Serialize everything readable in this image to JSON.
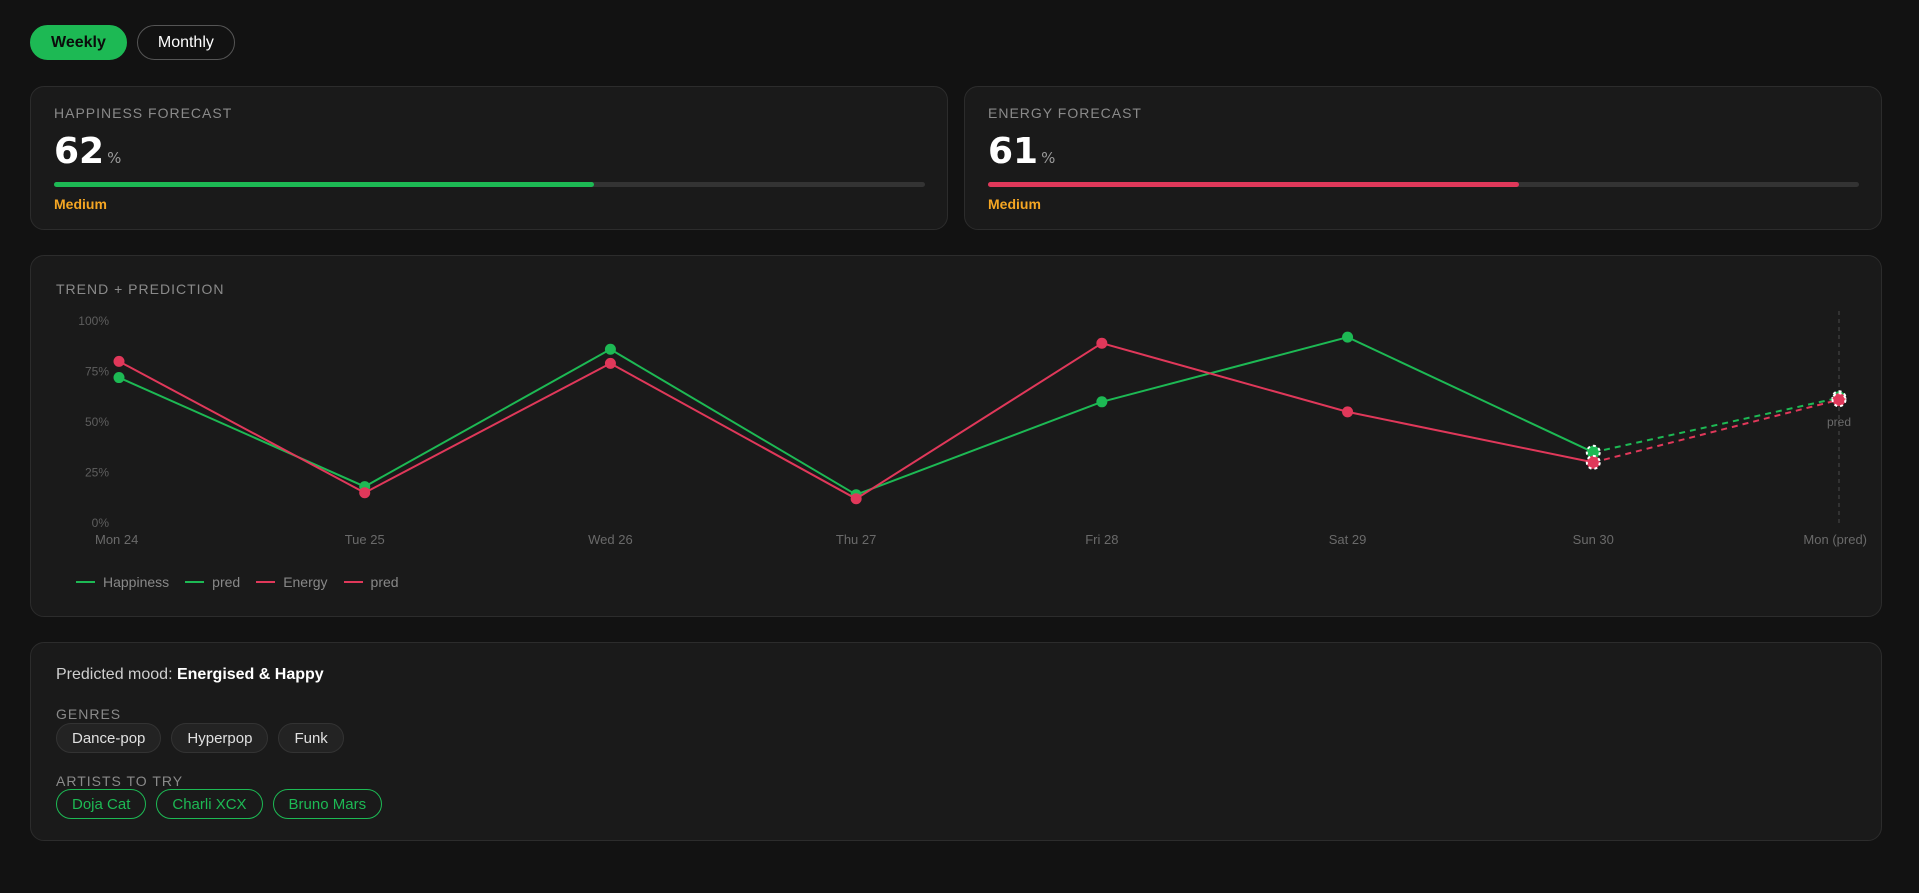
{
  "toggle": {
    "weekly_label": "Weekly",
    "monthly_label": "Monthly",
    "active": "weekly"
  },
  "happiness": {
    "label": "HAPPINESS FORECAST",
    "value": "62",
    "unit": "%",
    "level": "Medium",
    "fill_fraction": 0.62,
    "color": "#1db954"
  },
  "energy": {
    "label": "ENERGY FORECAST",
    "value": "61",
    "unit": "%",
    "level": "Medium",
    "fill_fraction": 0.61,
    "color": "#e0385a"
  },
  "chart": {
    "label": "TREND + PREDICTION",
    "legend": [
      "Happiness",
      "pred",
      "Energy",
      "pred"
    ],
    "pred_marker_label": "pred"
  },
  "chart_data": {
    "type": "line",
    "categories": [
      "Mon 24",
      "Tue 25",
      "Wed 26",
      "Thu 27",
      "Fri 28",
      "Sat 29",
      "Sun 30",
      "Mon (pred)"
    ],
    "y_ticks": [
      "0%",
      "25%",
      "50%",
      "75%",
      "100%"
    ],
    "ylim": [
      0,
      100
    ],
    "grid": false,
    "legend_position": "bottom-left",
    "series": [
      {
        "name": "Happiness",
        "color": "#1db954",
        "values": [
          72,
          18,
          86,
          14,
          60,
          92,
          35,
          null
        ]
      },
      {
        "name": "pred",
        "color": "#1db954",
        "dashed": true,
        "values": [
          null,
          null,
          null,
          null,
          null,
          null,
          35,
          62
        ]
      },
      {
        "name": "Energy",
        "color": "#e0385a",
        "values": [
          80,
          15,
          79,
          12,
          89,
          55,
          30,
          null
        ]
      },
      {
        "name": "pred",
        "color": "#e0385a",
        "dashed": true,
        "values": [
          null,
          null,
          null,
          null,
          null,
          null,
          30,
          61
        ]
      }
    ]
  },
  "mood": {
    "prefix": "Predicted mood:",
    "value": "Energised & Happy",
    "genres_label": "GENRES",
    "genres": [
      "Dance-pop",
      "Hyperpop",
      "Funk"
    ],
    "artists_label": "ARTISTS TO TRY",
    "artists": [
      "Doja Cat",
      "Charli XCX",
      "Bruno Mars"
    ]
  }
}
